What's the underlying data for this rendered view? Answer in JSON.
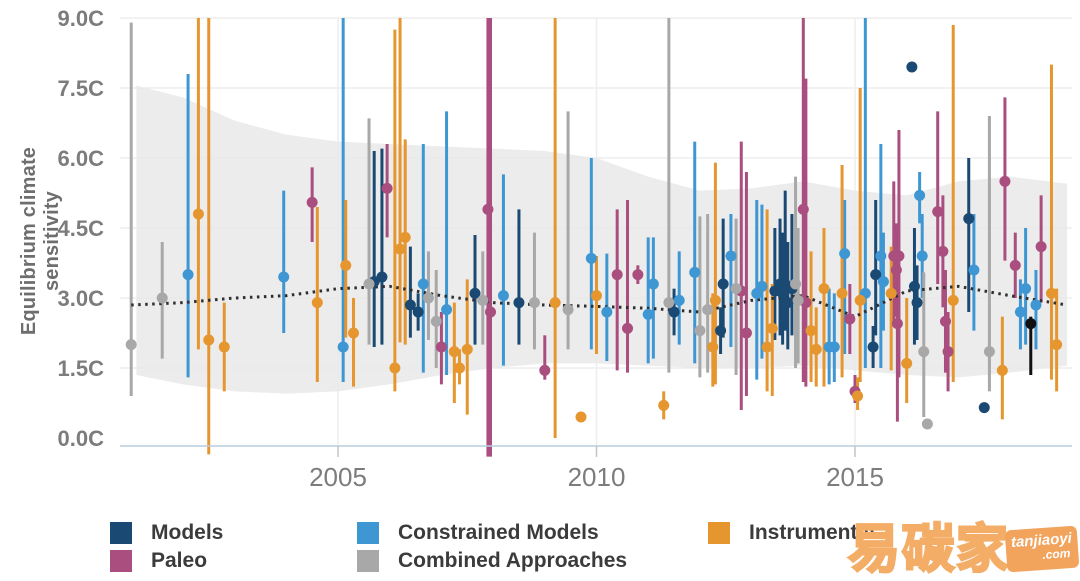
{
  "y_axis": {
    "title": "Equilibrium climate sensitivity",
    "tick_labels": [
      "9.0C",
      "7.5C",
      "6.0C",
      "4.5C",
      "3.0C",
      "1.5C",
      "0.0C"
    ],
    "tick_values": [
      9,
      7.5,
      6,
      4.5,
      3,
      1.5,
      0
    ]
  },
  "x_axis": {
    "tick_labels": [
      "2005",
      "2010",
      "2015"
    ],
    "tick_values": [
      2005,
      2010,
      2015
    ]
  },
  "legend": {
    "items": [
      {
        "label": "Models",
        "key": "models",
        "color": "#1a4a73"
      },
      {
        "label": "Paleo",
        "key": "paleo",
        "color": "#a94e7e"
      },
      {
        "label": "Constrained Models",
        "key": "constrained",
        "color": "#3e97d3"
      },
      {
        "label": "Combined Approaches",
        "key": "combined",
        "color": "#a8a8a8"
      },
      {
        "label": "Instrumental",
        "key": "instrumental",
        "color": "#e6962f"
      }
    ]
  },
  "watermark": {
    "cjk": "易碳家",
    "badge_line1": "tanjiaoyi",
    "badge_line2": ".com",
    "outline_color": "#f4ad66",
    "badge_color": "#f2a35c"
  },
  "colors": {
    "grid": "#e4e4e4",
    "vgrid": "#eeeeee",
    "band": "#e9e9e9",
    "trend": "#2f2f2f",
    "axis_line": "#b7cddd",
    "tick": "#c4c4c4",
    "tick_text": "#7c7c7c"
  },
  "chart_data": {
    "type": "scatter",
    "title": "",
    "xlabel": "",
    "ylabel": "Equilibrium climate sensitivity",
    "ylim": [
      0,
      9
    ],
    "xlim": [
      2000.8,
      2019.3
    ],
    "grid": true,
    "legend_position": "bottom",
    "band_note": "gray shaded envelope (likely range), upper/lower bounds in C",
    "band": {
      "years": [
        2001.1,
        2002,
        2003,
        2004,
        2005,
        2006,
        2007,
        2008,
        2009,
        2010,
        2011,
        2012,
        2013,
        2014,
        2015,
        2016,
        2017,
        2018,
        2019.1
      ],
      "hi": [
        7.55,
        7.3,
        6.8,
        6.5,
        6.35,
        6.3,
        6.25,
        6.2,
        6.15,
        6.0,
        5.6,
        5.3,
        5.35,
        5.5,
        5.3,
        5.2,
        5.5,
        5.6,
        5.45
      ],
      "lo": [
        1.35,
        1.15,
        1.0,
        0.95,
        1.0,
        1.15,
        1.35,
        1.5,
        1.6,
        1.6,
        1.55,
        1.5,
        1.5,
        1.55,
        1.45,
        1.35,
        1.3,
        1.4,
        1.55
      ]
    },
    "trend_note": "dotted running-median line, values in C",
    "trend": {
      "years": [
        2001,
        2002,
        2003,
        2004,
        2005,
        2006,
        2007,
        2008,
        2009,
        2010,
        2011,
        2012,
        2013,
        2014,
        2015,
        2016,
        2017,
        2018,
        2019.1
      ],
      "values": [
        2.85,
        2.9,
        3.0,
        3.05,
        3.2,
        3.25,
        3.05,
        2.9,
        2.85,
        2.82,
        2.78,
        2.7,
        2.95,
        3.05,
        2.6,
        3.15,
        3.25,
        3.05,
        2.85
      ]
    },
    "point_format": "[year, value_C, bar_low_C_or_null, bar_high_C_or_null, optional_color_override]",
    "series": [
      {
        "name": "Models",
        "key": "models",
        "points": [
          [
            2005.7,
            3.35,
            1.95,
            6.15
          ],
          [
            2005.85,
            3.45,
            2.0,
            6.2
          ],
          [
            2006.4,
            2.85,
            2.15,
            4.1
          ],
          [
            2006.55,
            2.7,
            2.3,
            3.1
          ],
          [
            2007.65,
            3.1,
            2.0,
            4.35
          ],
          [
            2008.5,
            2.9,
            2.0,
            4.9
          ],
          [
            2011.5,
            2.7,
            2.2,
            3.2
          ],
          [
            2012.4,
            2.3,
            1.8,
            2.8
          ],
          [
            2012.45,
            3.3,
            2.15,
            4.7
          ],
          [
            2013.45,
            3.15,
            2.1,
            4.5
          ],
          [
            2013.55,
            3.3,
            2.2,
            4.7
          ],
          [
            2013.6,
            3.1,
            2.0,
            4.4
          ],
          [
            2013.65,
            3.3,
            2.3,
            5.3
          ],
          [
            2013.7,
            2.9,
            1.9,
            4.2
          ],
          [
            2013.78,
            3.2,
            2.2,
            4.8
          ],
          [
            2015.35,
            1.95,
            1.5,
            2.4
          ],
          [
            2015.4,
            3.5,
            2.2,
            5.1
          ],
          [
            2016.1,
            7.95,
            null,
            null
          ],
          [
            2016.15,
            3.25,
            2.0,
            4.5
          ],
          [
            2016.2,
            2.9,
            2.1,
            3.7
          ],
          [
            2017.2,
            4.7,
            2.7,
            6.0
          ],
          [
            2017.5,
            0.65,
            null,
            null
          ],
          [
            2018.4,
            2.45,
            1.35,
            2.6,
            "#111111"
          ]
        ]
      },
      {
        "name": "Paleo",
        "key": "paleo",
        "points": [
          [
            2004.5,
            5.05,
            4.2,
            5.8
          ],
          [
            2005.95,
            5.35,
            4.3,
            6.3
          ],
          [
            2007.0,
            1.95,
            1.15,
            2.7
          ],
          [
            2007.9,
            4.9,
            -0.4,
            9.0
          ],
          [
            2007.95,
            2.7,
            -0.4,
            9.0
          ],
          [
            2009.0,
            1.45,
            1.25,
            2.2
          ],
          [
            2010.4,
            3.5,
            1.45,
            4.9
          ],
          [
            2010.6,
            2.35,
            1.4,
            5.1
          ],
          [
            2010.8,
            3.5,
            3.3,
            3.7
          ],
          [
            2012.8,
            3.15,
            0.6,
            6.35
          ],
          [
            2012.9,
            2.25,
            0.9,
            5.7
          ],
          [
            2014.0,
            4.9,
            1.2,
            9.0
          ],
          [
            2014.05,
            2.9,
            1.1,
            7.7
          ],
          [
            2014.9,
            2.55,
            1.8,
            3.3
          ],
          [
            2015.0,
            1.0,
            0.75,
            1.35
          ],
          [
            2015.75,
            3.9,
            2.4,
            5.5
          ],
          [
            2015.8,
            3.6,
            2.6,
            4.6
          ],
          [
            2015.82,
            2.45,
            0.35,
            4.5
          ],
          [
            2015.85,
            3.9,
            1.3,
            6.6
          ],
          [
            2016.6,
            4.85,
            3.3,
            7.0
          ],
          [
            2016.7,
            4.0,
            2.8,
            5.2
          ],
          [
            2016.75,
            2.5,
            1.4,
            3.6
          ],
          [
            2016.8,
            1.85,
            1.0,
            2.7
          ],
          [
            2017.9,
            5.5,
            3.8,
            7.3
          ],
          [
            2018.1,
            3.7,
            3.0,
            4.4
          ],
          [
            2018.6,
            4.1,
            2.9,
            5.2
          ]
        ]
      },
      {
        "name": "Constrained Models",
        "key": "constrained",
        "points": [
          [
            2002.1,
            3.5,
            1.3,
            7.8
          ],
          [
            2003.95,
            3.45,
            2.25,
            5.3
          ],
          [
            2005.1,
            1.95,
            1.2,
            9.0
          ],
          [
            2006.65,
            3.3,
            1.4,
            6.3
          ],
          [
            2007.1,
            2.75,
            1.35,
            7.0
          ],
          [
            2008.2,
            3.05,
            1.55,
            5.65
          ],
          [
            2009.9,
            3.85,
            1.9,
            6.0
          ],
          [
            2010.2,
            2.7,
            1.65,
            3.95
          ],
          [
            2011.0,
            2.65,
            1.6,
            4.3
          ],
          [
            2011.1,
            3.3,
            1.7,
            4.3
          ],
          [
            2011.6,
            2.95,
            2.0,
            4.0
          ],
          [
            2011.9,
            3.55,
            1.6,
            6.35
          ],
          [
            2012.6,
            3.9,
            1.95,
            4.8
          ],
          [
            2013.1,
            3.1,
            1.25,
            5.1
          ],
          [
            2013.2,
            3.25,
            1.7,
            5.0
          ],
          [
            2014.5,
            1.95,
            1.15,
            3.2
          ],
          [
            2014.6,
            1.95,
            1.2,
            3.1
          ],
          [
            2014.8,
            3.95,
            1.8,
            5.1
          ],
          [
            2015.2,
            3.1,
            1.5,
            9.0
          ],
          [
            2015.5,
            3.9,
            1.5,
            6.3
          ],
          [
            2015.55,
            3.35,
            2.3,
            4.4
          ],
          [
            2016.25,
            5.2,
            4.6,
            5.7
          ],
          [
            2016.3,
            3.9,
            3.0,
            4.8
          ],
          [
            2017.3,
            3.6,
            2.3,
            4.8
          ],
          [
            2018.2,
            2.7,
            1.9,
            3.4
          ],
          [
            2018.3,
            3.2,
            2.0,
            4.5
          ],
          [
            2018.5,
            2.85,
            1.9,
            3.6
          ]
        ]
      },
      {
        "name": "Combined Approaches",
        "key": "combined",
        "points": [
          [
            2001.0,
            2.0,
            0.9,
            8.9
          ],
          [
            2001.6,
            3.0,
            1.7,
            4.2
          ],
          [
            2005.6,
            3.3,
            2.0,
            6.85
          ],
          [
            2006.75,
            3.0,
            2.1,
            4.0
          ],
          [
            2006.9,
            2.5,
            1.5,
            3.6
          ],
          [
            2007.8,
            2.95,
            2.0,
            4.0
          ],
          [
            2008.8,
            2.9,
            1.9,
            4.4
          ],
          [
            2009.45,
            2.75,
            1.9,
            7.0
          ],
          [
            2011.4,
            2.9,
            1.4,
            9.0
          ],
          [
            2012.0,
            2.3,
            1.3,
            4.75
          ],
          [
            2012.15,
            2.75,
            1.4,
            4.8
          ],
          [
            2012.7,
            3.2,
            1.35,
            4.7
          ],
          [
            2013.85,
            3.3,
            1.5,
            5.6
          ],
          [
            2013.9,
            2.95,
            1.6,
            4.5
          ],
          [
            2016.33,
            1.85,
            0.45,
            3.55
          ],
          [
            2016.4,
            0.3,
            null,
            null
          ],
          [
            2017.6,
            1.85,
            1.0,
            6.9
          ]
        ]
      },
      {
        "name": "Instrumental",
        "key": "instrumental",
        "points": [
          [
            2002.3,
            4.8,
            1.9,
            9.0
          ],
          [
            2002.5,
            2.1,
            -0.35,
            9.0
          ],
          [
            2002.8,
            1.95,
            1.0,
            2.9
          ],
          [
            2004.6,
            2.9,
            1.2,
            4.95
          ],
          [
            2005.15,
            3.7,
            2.15,
            5.1
          ],
          [
            2005.3,
            2.25,
            1.1,
            3.0
          ],
          [
            2006.1,
            1.5,
            1.0,
            8.75
          ],
          [
            2006.2,
            4.05,
            2.05,
            9.0
          ],
          [
            2006.3,
            4.3,
            2.0,
            6.4
          ],
          [
            2007.25,
            1.85,
            0.75,
            2.9
          ],
          [
            2007.35,
            1.5,
            1.15,
            1.9
          ],
          [
            2007.5,
            1.9,
            0.5,
            3.4
          ],
          [
            2009.2,
            2.9,
            0.0,
            9.0
          ],
          [
            2009.7,
            0.45,
            null,
            null
          ],
          [
            2010.0,
            3.05,
            1.8,
            3.9
          ],
          [
            2011.3,
            0.7,
            0.4,
            1.0
          ],
          [
            2012.25,
            1.95,
            1.1,
            3.1
          ],
          [
            2012.3,
            2.95,
            1.15,
            5.9
          ],
          [
            2013.3,
            1.95,
            1.0,
            4.9
          ],
          [
            2013.4,
            2.35,
            0.9,
            3.3
          ],
          [
            2014.15,
            2.3,
            1.2,
            4.0
          ],
          [
            2014.25,
            1.9,
            1.1,
            2.8
          ],
          [
            2014.4,
            3.2,
            1.1,
            4.5
          ],
          [
            2014.75,
            3.1,
            1.3,
            5.85
          ],
          [
            2015.05,
            0.9,
            0.6,
            1.3
          ],
          [
            2015.1,
            2.95,
            1.2,
            7.5
          ],
          [
            2015.7,
            3.1,
            1.45,
            4.1
          ],
          [
            2016.0,
            1.6,
            0.75,
            3.0
          ],
          [
            2016.9,
            2.95,
            1.2,
            8.85
          ],
          [
            2017.85,
            1.45,
            0.4,
            2.6
          ],
          [
            2018.8,
            3.1,
            1.25,
            8.0
          ],
          [
            2018.9,
            2.0,
            1.0,
            3.2
          ]
        ]
      }
    ]
  }
}
